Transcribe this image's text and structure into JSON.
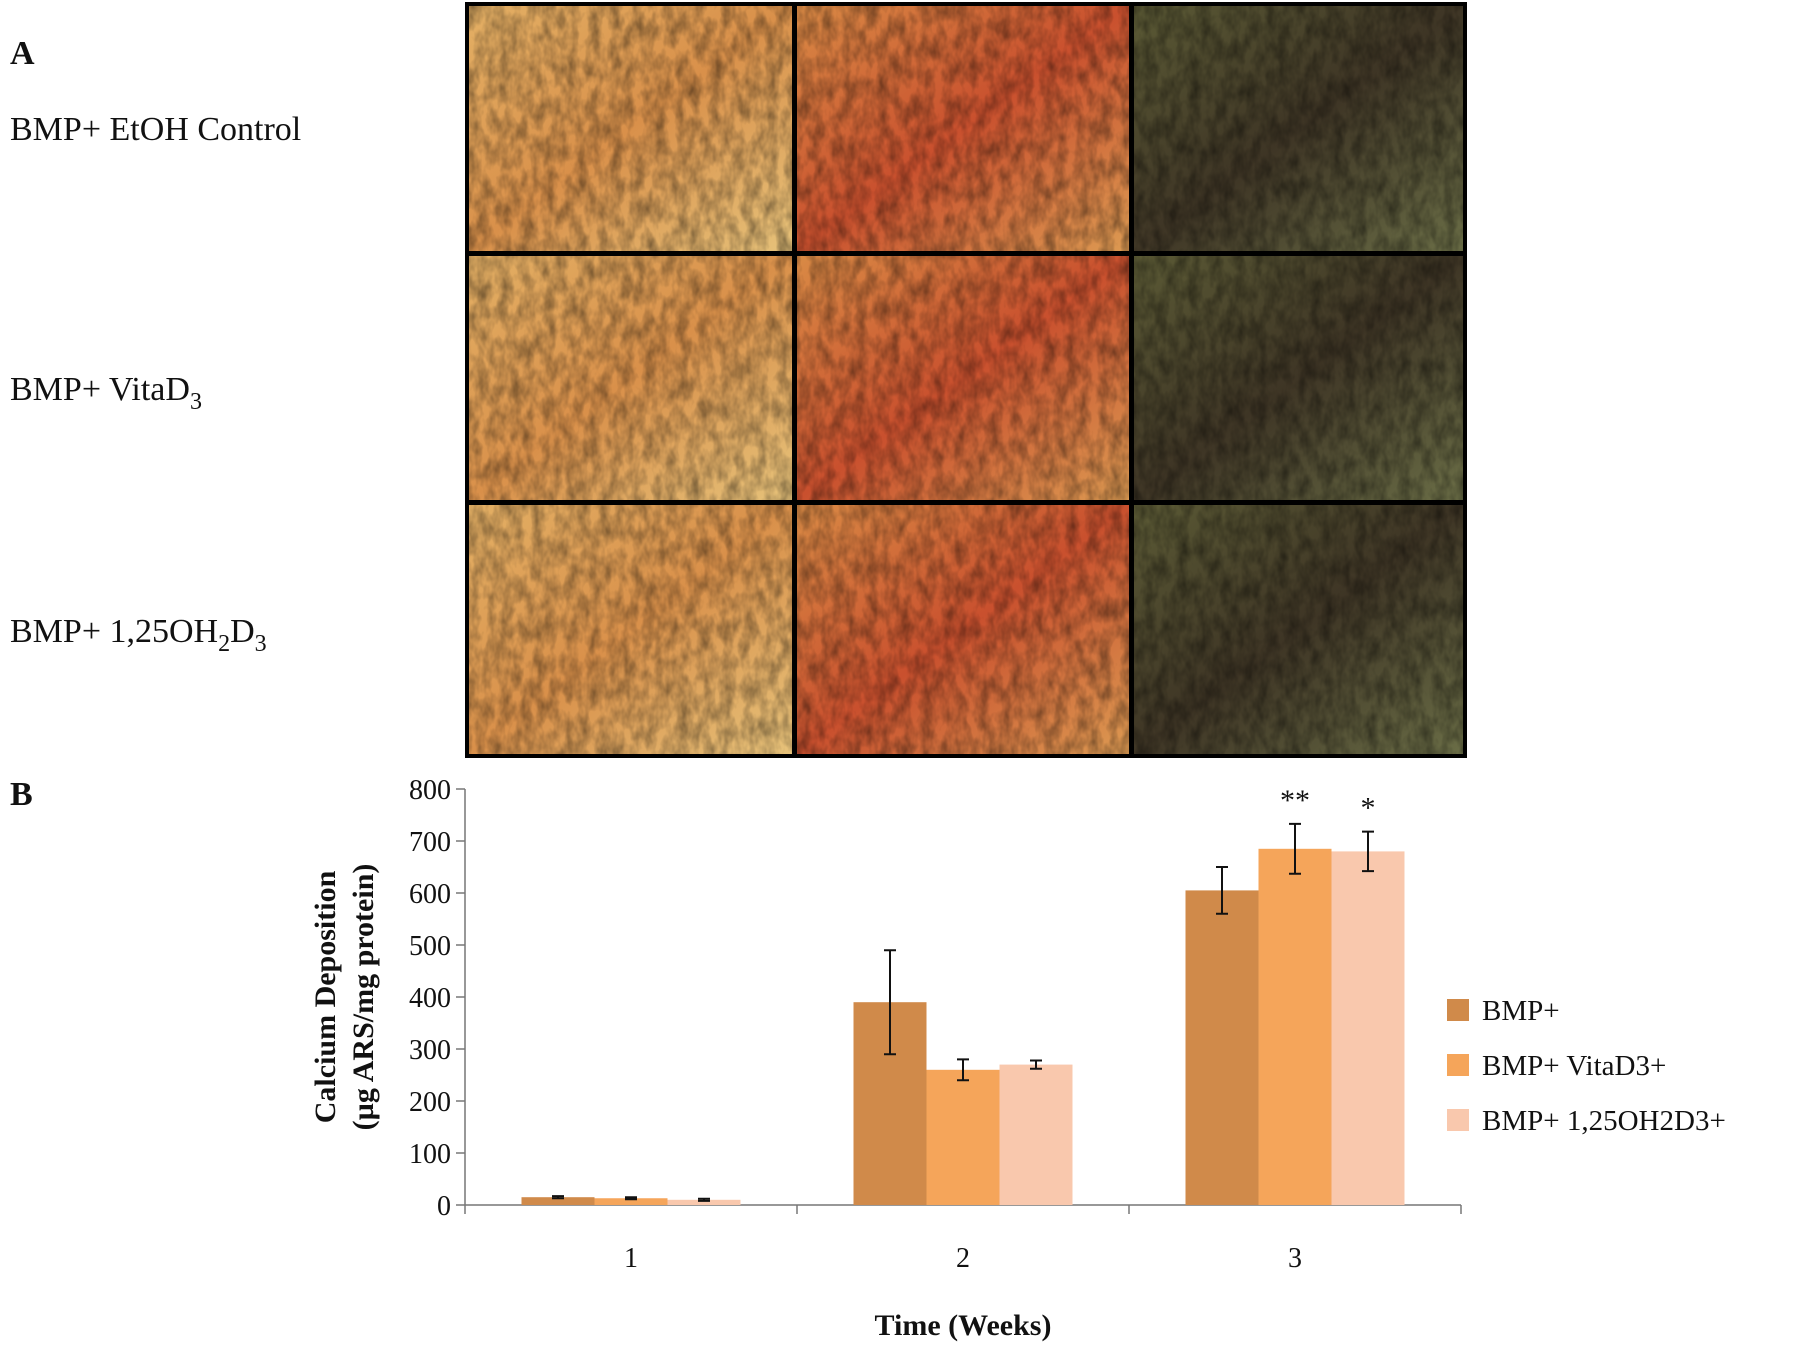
{
  "panel_a": {
    "label": "A",
    "row_labels": [
      [
        {
          "text": "BMP+ EtOH Control"
        }
      ],
      [
        {
          "text": "BMP+ VitaD"
        },
        {
          "text": "3",
          "sub": true
        }
      ],
      [
        {
          "text": "BMP+ 1,25OH"
        },
        {
          "text": "2",
          "sub": true
        },
        {
          "text": "D"
        },
        {
          "text": "3",
          "sub": true
        }
      ]
    ]
  },
  "chart_data": {
    "type": "bar",
    "panel_label": "B",
    "ylabel": [
      "Calcium Deposition",
      "(µg ARS/mg protein)"
    ],
    "xlabel": "Time (Weeks)",
    "categories": [
      "1",
      "2",
      "3"
    ],
    "series": [
      {
        "name": "BMP+",
        "color": "#d08a4a",
        "values": [
          15,
          390,
          605
        ],
        "errors": [
          2,
          100,
          45
        ]
      },
      {
        "name": "BMP+ VitaD3+",
        "color": "#f5a55a",
        "values": [
          13,
          260,
          685
        ],
        "errors": [
          2,
          20,
          48
        ]
      },
      {
        "name": "BMP+ 1,25OH2D3+",
        "color": "#f9c8ad",
        "values": [
          10,
          270,
          680
        ],
        "errors": [
          2,
          8,
          38
        ]
      }
    ],
    "annotations": [
      {
        "text": "**",
        "series": "BMP+ VitaD3+",
        "category": "3"
      },
      {
        "text": "*",
        "series": "BMP+ 1,25OH2D3+",
        "category": "3"
      }
    ],
    "ylim": [
      0,
      800
    ],
    "yticks": [
      0,
      100,
      200,
      300,
      400,
      500,
      600,
      700,
      800
    ],
    "legend": "right"
  }
}
